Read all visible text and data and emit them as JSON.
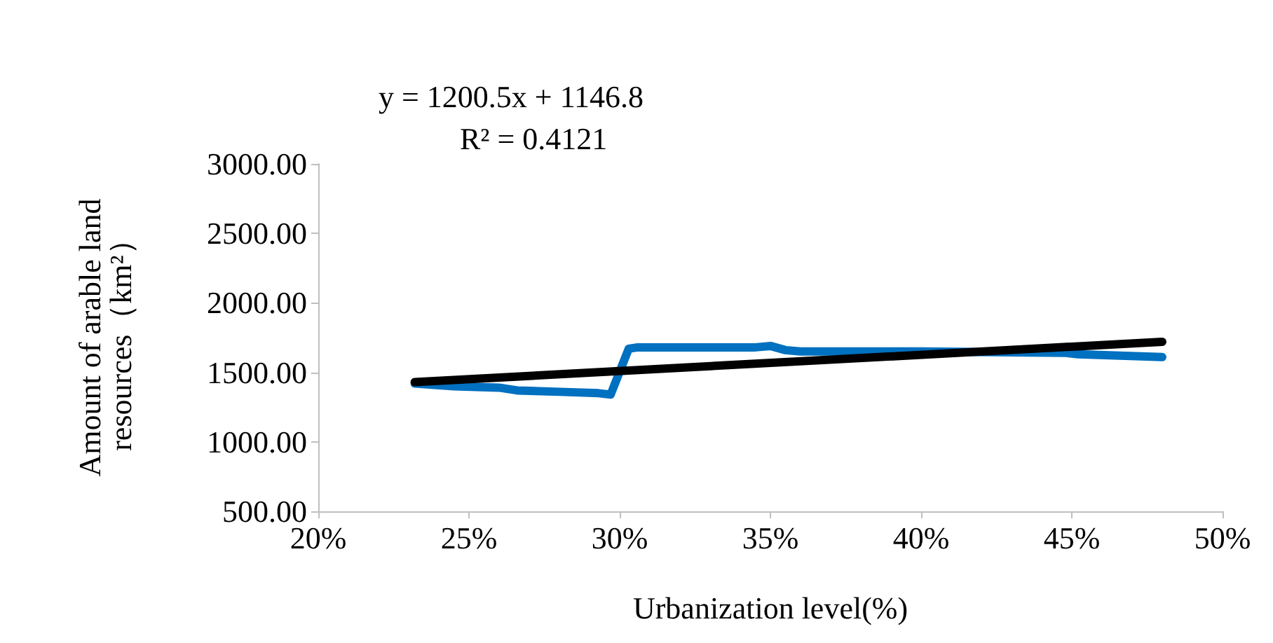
{
  "chart_data": {
    "type": "line",
    "xlabel": "Urbanization level(%)",
    "ylabel": "Amount of arable land\nresources（km²）",
    "annotations": [
      "y = 1200.5x + 1146.8",
      "R² = 0.4121"
    ],
    "series": [
      {
        "color": "#0070c0",
        "x": [
          23.2,
          24.5,
          26,
          26.6,
          28,
          29.3,
          29.7,
          30.3,
          30.6,
          33,
          34.5,
          35,
          35.5,
          36,
          40,
          44.8,
          45.2,
          48
        ],
        "values": [
          1420,
          1400,
          1390,
          1370,
          1360,
          1350,
          1340,
          1670,
          1680,
          1680,
          1680,
          1690,
          1660,
          1650,
          1650,
          1640,
          1630,
          1610
        ]
      },
      {
        "color": "#000000",
        "x": [
          23.2,
          48
        ],
        "values": [
          1430,
          1720
        ]
      }
    ],
    "xlim": [
      20,
      50
    ],
    "xticks": [
      {
        "value": 20,
        "label": "20%"
      },
      {
        "value": 25,
        "label": "25%"
      },
      {
        "value": 30,
        "label": "30%"
      },
      {
        "value": 35,
        "label": "35%"
      },
      {
        "value": 40,
        "label": "40%"
      },
      {
        "value": 45,
        "label": "45%"
      },
      {
        "value": 50,
        "label": "50%"
      }
    ],
    "ylim": [
      500,
      3000
    ],
    "yticks": [
      {
        "value": 500,
        "label": "500.00"
      },
      {
        "value": 1000,
        "label": "1000.00"
      },
      {
        "value": 1500,
        "label": "1500.00"
      },
      {
        "value": 2000,
        "label": "2000.00"
      },
      {
        "value": 2500,
        "label": "2500.00"
      },
      {
        "value": 3000,
        "label": "3000.00"
      }
    ],
    "grid": false,
    "marker": "none",
    "line_style": "solid"
  }
}
